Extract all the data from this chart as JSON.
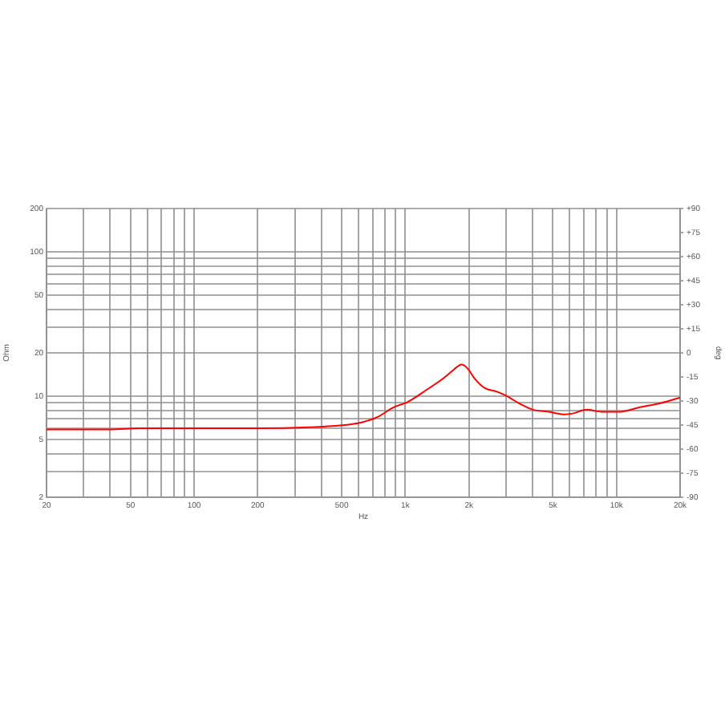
{
  "chart_data": {
    "type": "line",
    "xlabel": "Hz",
    "ylabel": "Ohm",
    "y2label": "deg",
    "log": "xy",
    "grid": true,
    "marker": "none",
    "x": [
      20,
      40,
      55,
      100,
      200,
      350,
      500,
      620,
      740,
      880,
      1020,
      1250,
      1500,
      1650,
      1760,
      1840,
      1920,
      2000,
      2120,
      2380,
      2700,
      3000,
      3480,
      4000,
      4800,
      5700,
      6200,
      7200,
      8600,
      10200,
      12900,
      16300,
      20000
    ],
    "series": [
      {
        "color": "#ff0000",
        "values": [
          5.9,
          5.9,
          6.0,
          6.0,
          6.0,
          6.1,
          6.3,
          6.6,
          7.2,
          8.4,
          9.1,
          11.0,
          13.2,
          14.8,
          16.0,
          16.6,
          16.2,
          15.2,
          13.4,
          11.4,
          10.8,
          10.1,
          8.9,
          8.1,
          7.8,
          7.5,
          7.6,
          8.1,
          7.8,
          7.8,
          8.4,
          9.0,
          9.8
        ]
      }
    ],
    "xlim": [
      20,
      20000
    ],
    "ylim": [
      2,
      200
    ],
    "y2lim": [
      -90,
      90
    ],
    "xticks": [
      20,
      {
        "value": 30,
        "label": null
      },
      {
        "value": 40,
        "label": null
      },
      50,
      {
        "value": 60,
        "label": null
      },
      {
        "value": 70,
        "label": null
      },
      {
        "value": 80,
        "label": null
      },
      {
        "value": 90,
        "label": null
      },
      100,
      200,
      {
        "value": 300,
        "label": null
      },
      {
        "value": 400,
        "label": null
      },
      500,
      {
        "value": 600,
        "label": null
      },
      {
        "value": 700,
        "label": null
      },
      {
        "value": 800,
        "label": null
      },
      {
        "value": 900,
        "label": null
      },
      {
        "value": 1000,
        "label": "1k"
      },
      {
        "value": 2000,
        "label": "2k"
      },
      {
        "value": 3000,
        "label": null
      },
      {
        "value": 4000,
        "label": null
      },
      {
        "value": 5000,
        "label": "5k"
      },
      {
        "value": 6000,
        "label": null
      },
      {
        "value": 7000,
        "label": null
      },
      {
        "value": 8000,
        "label": null
      },
      {
        "value": 9000,
        "label": null
      },
      {
        "value": 10000,
        "label": "10k"
      },
      {
        "value": 20000,
        "label": "20k"
      }
    ],
    "yticks": [
      2,
      {
        "value": 3,
        "label": null
      },
      {
        "value": 4,
        "label": null
      },
      5,
      {
        "value": 6,
        "label": null
      },
      {
        "value": 7,
        "label": null
      },
      {
        "value": 8,
        "label": null
      },
      {
        "value": 9,
        "label": null
      },
      10,
      20,
      {
        "value": 30,
        "label": null
      },
      {
        "value": 40,
        "label": null
      },
      50,
      {
        "value": 60,
        "label": null
      },
      {
        "value": 70,
        "label": null
      },
      {
        "value": 80,
        "label": null
      },
      {
        "value": 90,
        "label": null
      },
      100,
      200
    ],
    "y2ticks": [
      -90,
      -75,
      -60,
      -45,
      -30,
      -15,
      0,
      {
        "value": 15,
        "label": "+15"
      },
      {
        "value": 30,
        "label": "+30"
      },
      {
        "value": 45,
        "label": "+45"
      },
      {
        "value": 60,
        "label": "+60"
      },
      {
        "value": 75,
        "label": "+75"
      },
      {
        "value": 90,
        "label": "+90"
      }
    ]
  }
}
